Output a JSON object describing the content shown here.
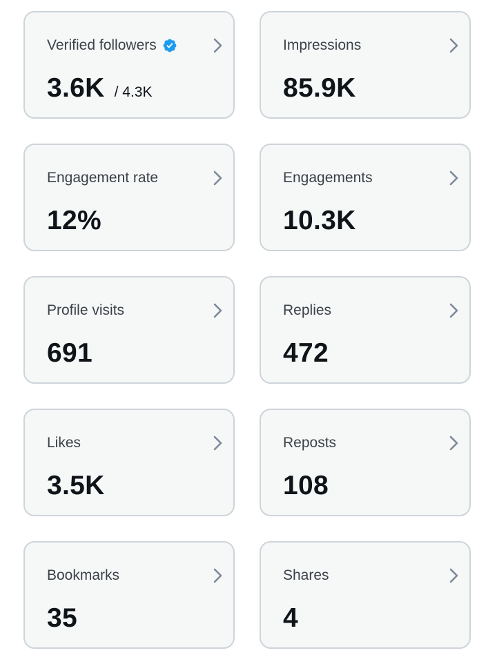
{
  "cards": [
    {
      "label": "Verified followers",
      "value": "3.6K",
      "sub": "/ 4.3K"
    },
    {
      "label": "Impressions",
      "value": "85.9K"
    },
    {
      "label": "Engagement rate",
      "value": "12%"
    },
    {
      "label": "Engagements",
      "value": "10.3K"
    },
    {
      "label": "Profile visits",
      "value": "691"
    },
    {
      "label": "Replies",
      "value": "472"
    },
    {
      "label": "Likes",
      "value": "3.5K"
    },
    {
      "label": "Reposts",
      "value": "108"
    },
    {
      "label": "Bookmarks",
      "value": "35"
    },
    {
      "label": "Shares",
      "value": "4"
    }
  ],
  "colors": {
    "card_bg": "#f6f7f7",
    "card_border": "#cdd4da",
    "label_text": "#3b4148",
    "value_text": "#0f1419",
    "chevron": "#7b8a98",
    "verified_blue": "#1d9bf0"
  },
  "icons": {
    "chevron": "chevron-right-icon",
    "verified": "verified-badge-icon"
  }
}
